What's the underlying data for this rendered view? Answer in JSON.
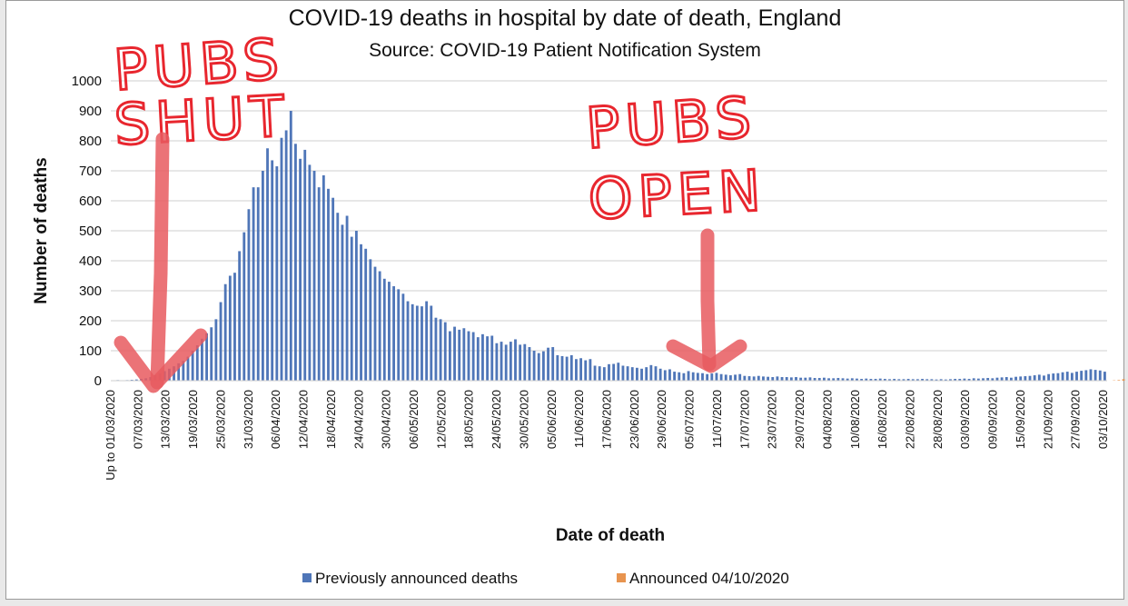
{
  "chart_data": {
    "type": "bar",
    "title": "COVID-19 deaths in hospital by date of death, England",
    "subtitle": "Source: COVID-19 Patient Notification System",
    "xlabel": "Date of death",
    "ylabel": "Number of deaths",
    "ylim": [
      0,
      1000
    ],
    "yticks": [
      0,
      100,
      200,
      300,
      400,
      500,
      600,
      700,
      800,
      900,
      1000
    ],
    "grid": true,
    "legend_placement": "bottom",
    "x_tick_labels": [
      "Up to 01/03/2020",
      "07/03/2020",
      "13/03/2020",
      "19/03/2020",
      "25/03/2020",
      "31/03/2020",
      "06/04/2020",
      "12/04/2020",
      "18/04/2020",
      "24/04/2020",
      "30/04/2020",
      "06/05/2020",
      "12/05/2020",
      "18/05/2020",
      "24/05/2020",
      "30/05/2020",
      "05/06/2020",
      "11/06/2020",
      "17/06/2020",
      "23/06/2020",
      "29/06/2020",
      "05/07/2020",
      "11/07/2020",
      "17/07/2020",
      "23/07/2020",
      "29/07/2020",
      "04/08/2020",
      "10/08/2020",
      "16/08/2020",
      "22/08/2020",
      "28/08/2020",
      "03/09/2020",
      "09/09/2020",
      "15/09/2020",
      "21/09/2020",
      "27/09/2020",
      "03/10/2020"
    ],
    "series": [
      {
        "name": "Previously announced deaths",
        "color": "#4f76b8",
        "values": [
          1,
          2,
          1,
          2,
          3,
          4,
          6,
          8,
          12,
          18,
          24,
          32,
          40,
          48,
          58,
          66,
          80,
          100,
          118,
          140,
          158,
          178,
          205,
          262,
          322,
          350,
          360,
          432,
          495,
          572,
          645,
          645,
          700,
          775,
          735,
          715,
          810,
          835,
          900,
          790,
          740,
          770,
          720,
          700,
          645,
          685,
          640,
          610,
          560,
          520,
          550,
          480,
          500,
          455,
          440,
          405,
          380,
          365,
          340,
          330,
          315,
          305,
          290,
          265,
          255,
          250,
          248,
          265,
          250,
          210,
          205,
          195,
          165,
          180,
          170,
          175,
          165,
          162,
          145,
          155,
          148,
          150,
          125,
          130,
          120,
          130,
          138,
          120,
          122,
          112,
          100,
          92,
          98,
          110,
          112,
          85,
          82,
          80,
          85,
          72,
          75,
          68,
          72,
          50,
          48,
          45,
          55,
          56,
          60,
          50,
          48,
          45,
          43,
          40,
          45,
          52,
          48,
          40,
          35,
          38,
          30,
          28,
          25,
          32,
          28,
          26,
          25,
          22,
          24,
          26,
          22,
          20,
          18,
          20,
          22,
          16,
          15,
          14,
          16,
          14,
          13,
          12,
          14,
          12,
          12,
          11,
          12,
          10,
          10,
          11,
          9,
          9,
          10,
          8,
          8,
          9,
          8,
          7,
          8,
          7,
          6,
          7,
          6,
          6,
          7,
          6,
          5,
          6,
          5,
          5,
          6,
          5,
          5,
          6,
          5,
          5,
          4,
          5,
          4,
          5,
          6,
          6,
          7,
          6,
          8,
          7,
          8,
          9,
          8,
          10,
          11,
          12,
          10,
          13,
          14,
          15,
          16,
          18,
          20,
          17,
          22,
          24,
          25,
          28,
          30,
          26,
          30,
          33,
          35,
          38,
          36,
          34,
          30
        ]
      },
      {
        "name": "Announced 04/10/2020",
        "color": "#e8944f",
        "values": [
          0,
          0,
          0,
          0,
          0,
          0,
          0,
          0,
          0,
          0,
          0,
          0,
          0,
          0,
          0,
          0,
          0,
          0,
          0,
          0,
          0,
          0,
          0,
          0,
          0,
          0,
          0,
          0,
          0,
          0,
          0,
          0,
          0,
          0,
          0,
          0,
          0,
          0,
          0,
          0,
          0,
          0,
          0,
          0,
          0,
          0,
          0,
          0,
          0,
          0,
          0,
          0,
          0,
          0,
          0,
          0,
          0,
          0,
          0,
          0,
          0,
          0,
          0,
          0,
          0,
          0,
          0,
          0,
          0,
          0,
          0,
          0,
          0,
          0,
          0,
          0,
          0,
          0,
          0,
          0,
          0,
          0,
          0,
          0,
          0,
          0,
          0,
          0,
          0,
          0,
          0,
          0,
          0,
          0,
          0,
          0,
          0,
          0,
          0,
          0,
          0,
          0,
          0,
          0,
          0,
          0,
          0,
          0,
          0,
          0,
          0,
          0,
          0,
          0,
          0,
          0,
          0,
          0,
          0,
          0,
          0,
          0,
          0,
          0,
          0,
          0,
          0,
          0,
          0,
          0,
          0,
          0,
          0,
          0,
          0,
          0,
          0,
          0,
          0,
          0,
          0,
          0,
          0,
          0,
          0,
          0,
          0,
          0,
          0,
          0,
          0,
          0,
          0,
          0,
          0,
          0,
          0,
          0,
          0,
          0,
          0,
          0,
          0,
          0,
          0,
          0,
          0,
          0,
          0,
          0,
          0,
          0,
          0,
          0,
          0,
          0,
          0,
          0,
          0,
          0,
          0,
          0,
          0,
          0,
          0,
          0,
          0,
          0,
          0,
          0,
          0,
          0,
          0,
          0,
          0,
          0,
          0,
          0,
          0,
          0,
          0,
          0,
          0,
          0,
          0,
          0,
          0,
          0,
          0,
          0,
          0,
          0,
          0,
          0,
          1,
          2,
          5,
          8
        ]
      }
    ]
  },
  "annotations": {
    "left_text_line1": "PUBS",
    "left_text_line2": "SHUT",
    "right_text_line1": "PUBS",
    "right_text_line2": "OPEN",
    "color": "#e8262e"
  }
}
